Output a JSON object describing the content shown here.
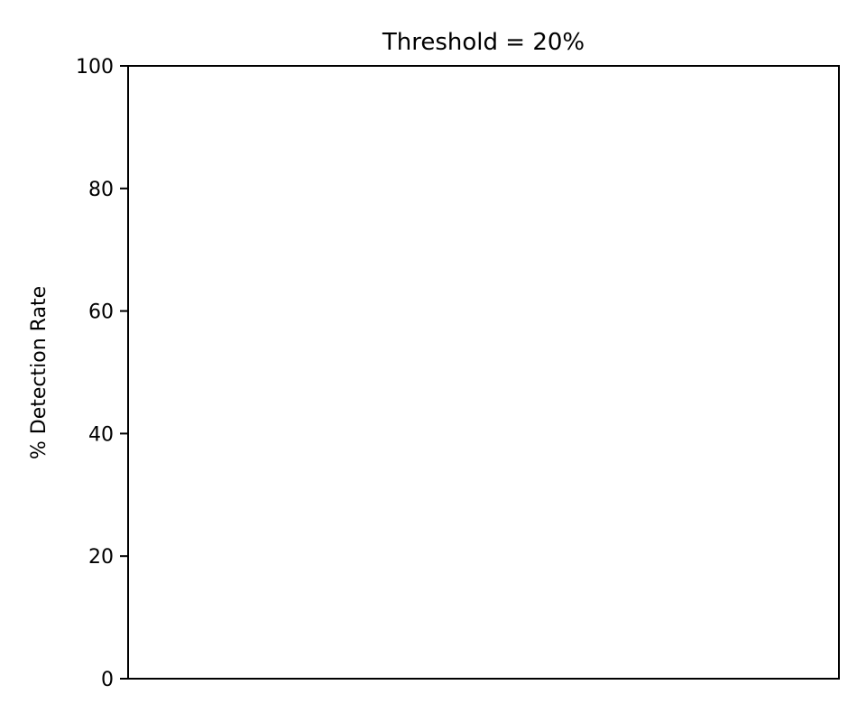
{
  "chart_data": {
    "type": "bar",
    "title": "Threshold = 20%",
    "xlabel": "",
    "ylabel": "% Detection Rate",
    "ylim": [
      0,
      100
    ],
    "yticks": [
      0,
      20,
      40,
      60,
      80,
      100
    ],
    "categories": [],
    "values": [],
    "grid": false,
    "legend": null
  }
}
